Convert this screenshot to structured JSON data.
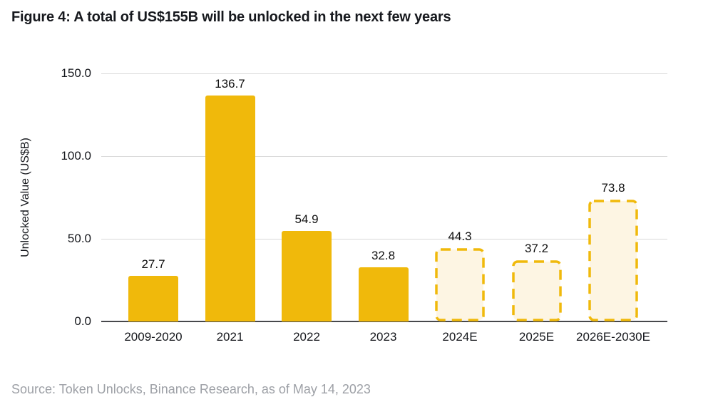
{
  "figure": {
    "title": "Figure 4: A total of US$155B will be unlocked in the next few years",
    "source": "Source: Token Unlocks, Binance Research, as of May 14, 2023"
  },
  "chart_data": {
    "type": "bar",
    "title": "Figure 4: A total of US$155B will be unlocked in the next few years",
    "xlabel": "",
    "ylabel": "Unlocked Value (US$B)",
    "categories": [
      "2009-2020",
      "2021",
      "2022",
      "2023",
      "2024E",
      "2025E",
      "2026E-2030E"
    ],
    "values": [
      27.7,
      136.7,
      54.9,
      32.8,
      44.3,
      37.2,
      73.8
    ],
    "value_labels": [
      "27.7",
      "136.7",
      "54.9",
      "32.8",
      "44.3",
      "37.2",
      "73.8"
    ],
    "estimate_flags": [
      false,
      false,
      false,
      false,
      true,
      true,
      true
    ],
    "ylim": [
      0,
      150
    ],
    "yticks": [
      0,
      50,
      100,
      150
    ],
    "ytick_labels": [
      "0.0",
      "50.0",
      "100.0",
      "150.0"
    ],
    "grid": true,
    "legend": false,
    "colors": {
      "actual_bar": "#f0b90b",
      "estimate_fill": "#fdf5e3",
      "estimate_border": "#f0b90b",
      "gridline": "#d9d9d9",
      "axis_line": "#47484c",
      "label_text": "#111111",
      "title_text": "#16181d",
      "source_text": "#9da0a6"
    }
  }
}
